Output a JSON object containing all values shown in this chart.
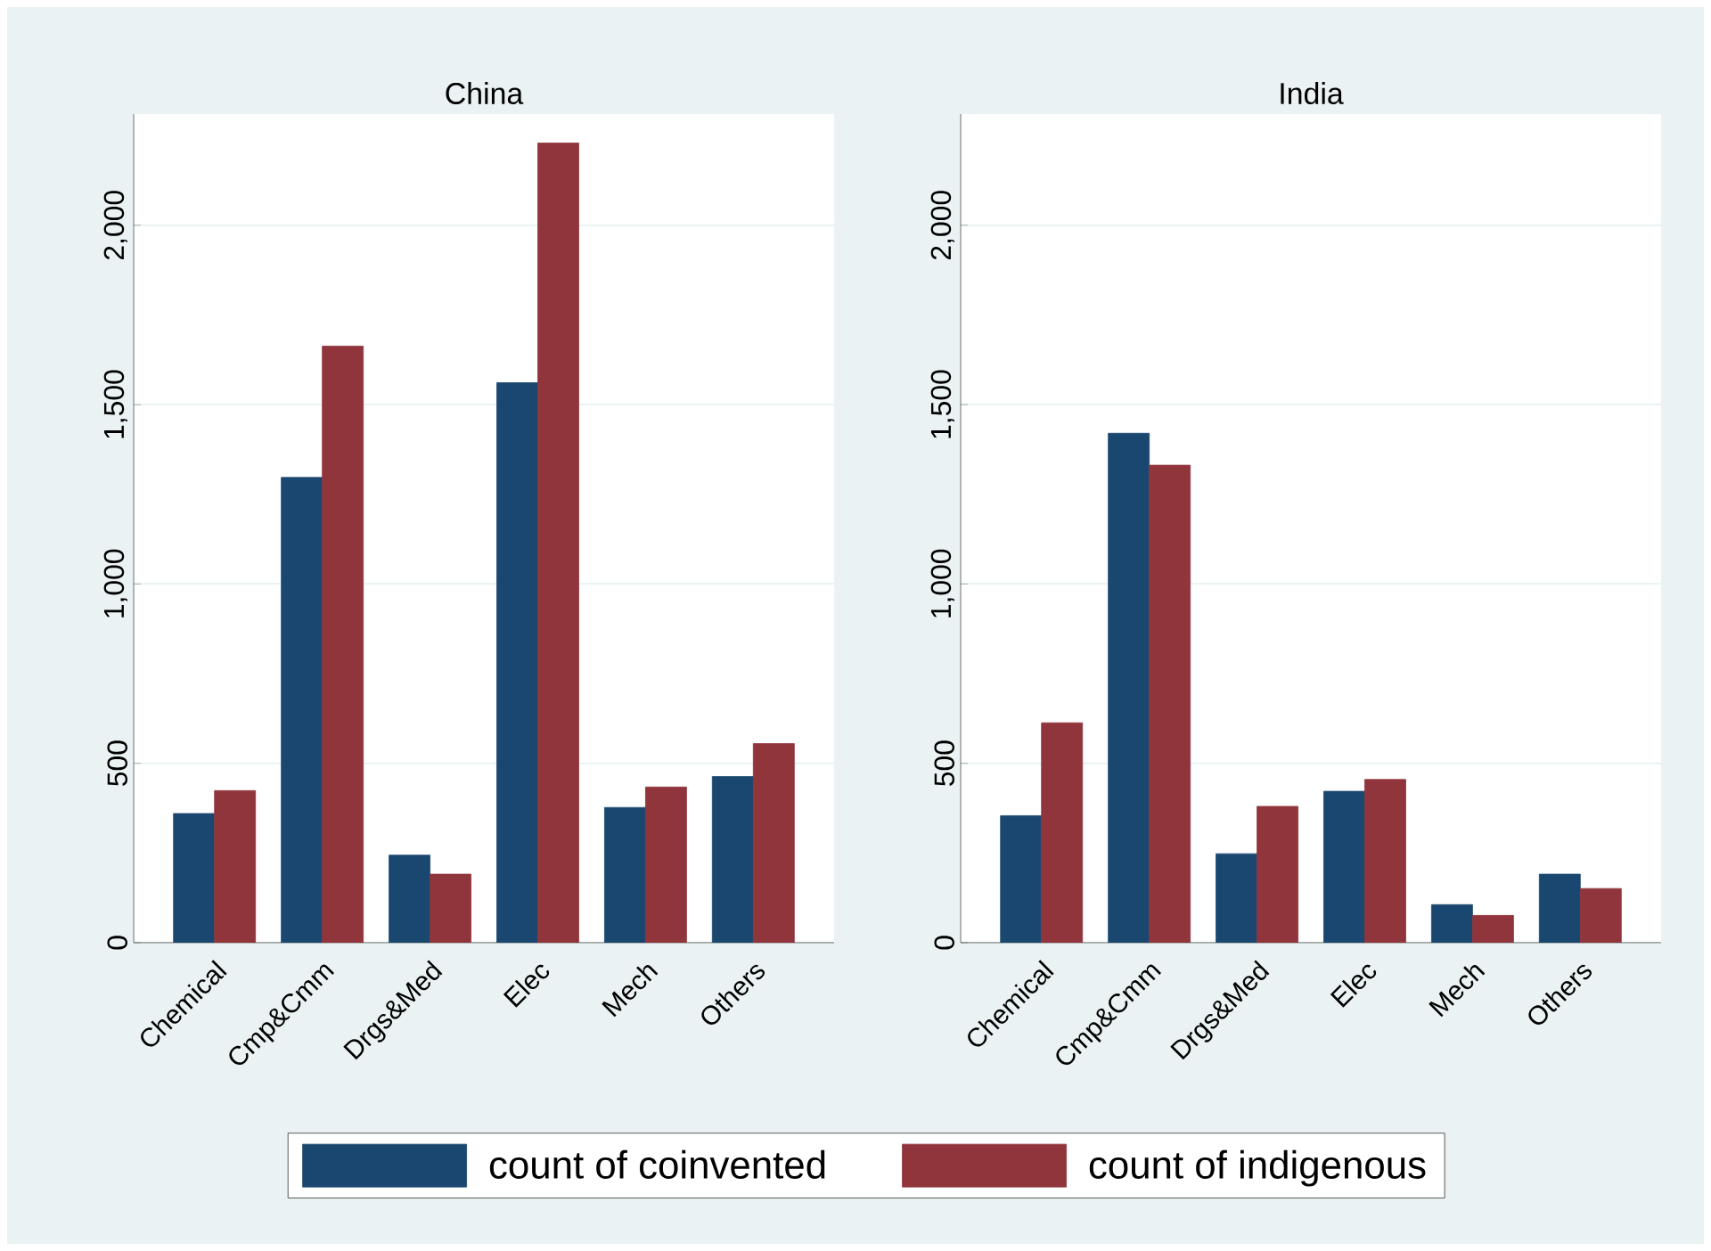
{
  "chart_data": [
    {
      "type": "bar",
      "title": "China",
      "categories": [
        "Chemical",
        "Cmp&Cmm",
        "Drgs&Med",
        "Elec",
        "Mech",
        "Others"
      ],
      "series": [
        {
          "name": "count of coinvented",
          "color": "#1a476f",
          "values": [
            360,
            1297,
            244,
            1561,
            377,
            463
          ]
        },
        {
          "name": "count of indigenous",
          "color": "#90353b",
          "values": [
            424,
            1663,
            191,
            2229,
            434,
            555
          ]
        }
      ],
      "ylim": [
        0,
        2310
      ],
      "yticks": [
        0,
        500,
        {
          "value": 1000,
          "label": "1,000"
        },
        {
          "value": 1500,
          "label": "1,500"
        },
        {
          "value": 2000,
          "label": "2,000"
        }
      ],
      "grid": "y",
      "legend": "bottom"
    },
    {
      "type": "bar",
      "title": "India",
      "categories": [
        "Chemical",
        "Cmp&Cmm",
        "Drgs&Med",
        "Elec",
        "Mech",
        "Others"
      ],
      "series": [
        {
          "color": "#1a476f",
          "values": [
            354,
            1420,
            248,
            422,
            106,
            191
          ]
        },
        {
          "color": "#90353b",
          "values": [
            613,
            1331,
            380,
            455,
            76,
            151
          ]
        }
      ],
      "ylim": [
        0,
        2310
      ],
      "yticks": [
        0,
        500,
        {
          "value": 1000,
          "label": "1,000"
        },
        {
          "value": 1500,
          "label": "1,500"
        },
        {
          "value": 2000,
          "label": "2,000"
        }
      ],
      "grid": "y"
    }
  ]
}
